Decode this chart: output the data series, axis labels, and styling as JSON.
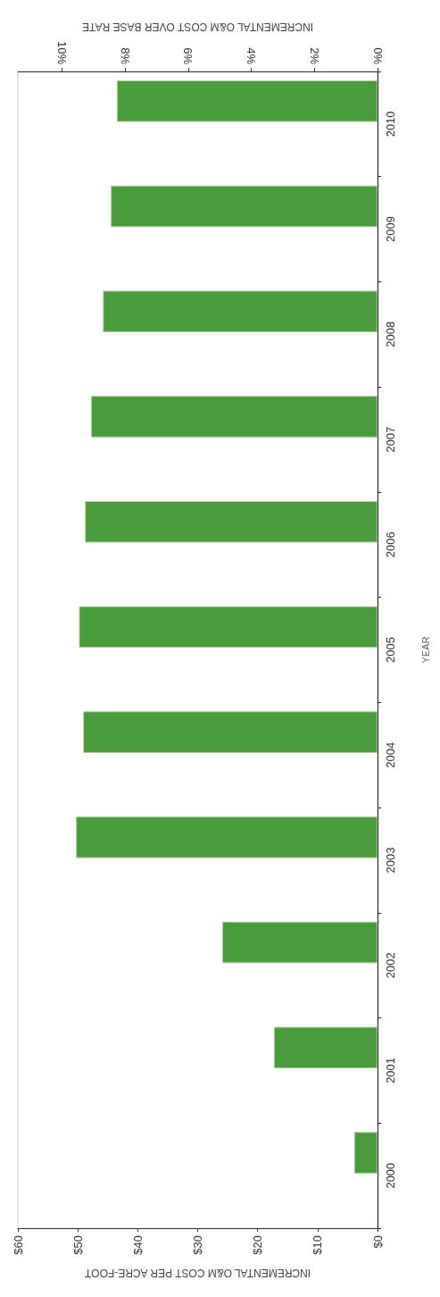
{
  "chart_data": {
    "type": "bar",
    "orientation": "horizontal",
    "ylabel": "YEAR",
    "xlabel": "INCREMENTAL O&M COST PER ACRE-FOOT",
    "x2label": "INCREMENTAL O&M COST OVER BASE RATE",
    "categories": [
      "2010",
      "2009",
      "2008",
      "2007",
      "2006",
      "2005",
      "2004",
      "2003",
      "2002",
      "2001",
      "2000"
    ],
    "values": [
      43.5,
      44.5,
      45.8,
      47.8,
      48.8,
      49.8,
      49.1,
      50.3,
      25.9,
      17.3,
      3.9
    ],
    "color": "#4a9b3c",
    "xlim": [
      60,
      0
    ],
    "xticks": [
      {
        "value": 0,
        "label": "$0"
      },
      {
        "value": 10,
        "label": "$10"
      },
      {
        "value": 20,
        "label": "$20"
      },
      {
        "value": 30,
        "label": "$30"
      },
      {
        "value": 40,
        "label": "$40"
      },
      {
        "value": 50,
        "label": "$50"
      },
      {
        "value": 60,
        "label": "$60"
      }
    ],
    "x2lim": [
      11.4,
      0
    ],
    "x2ticks": [
      {
        "value": 0,
        "label": "0%"
      },
      {
        "value": 2,
        "label": "2%"
      },
      {
        "value": 4,
        "label": "4%"
      },
      {
        "value": 6,
        "label": "6%"
      },
      {
        "value": 8,
        "label": "8%"
      },
      {
        "value": 10,
        "label": "10%"
      }
    ],
    "grid": false
  }
}
